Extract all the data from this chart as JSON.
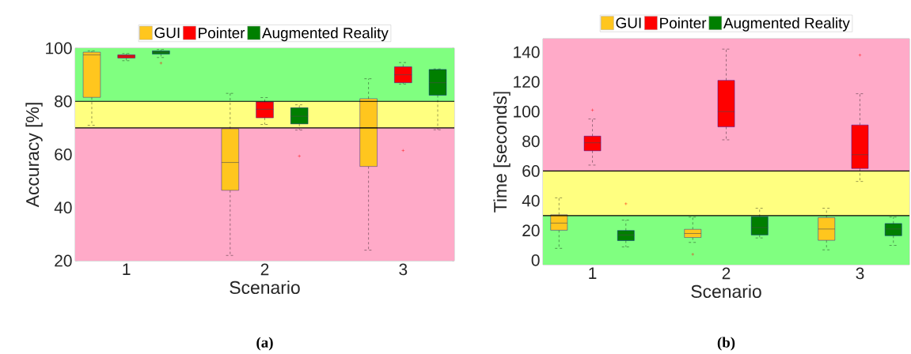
{
  "chart_data": [
    {
      "type": "box",
      "xlabel": "Scenario",
      "ylabel": "Accuracy [%]",
      "annotations": [
        "(a)"
      ],
      "categories": [
        "1",
        "2",
        "3"
      ],
      "ylim": [
        20,
        100
      ],
      "yticks": [
        20,
        40,
        60,
        80,
        100
      ],
      "grid": true,
      "legend": "top",
      "bands": [
        {
          "axis": "y",
          "from": 20,
          "to": 70,
          "color": "#ffaac8"
        },
        {
          "axis": "y",
          "from": 70,
          "to": 80,
          "color": "#ffff80"
        },
        {
          "axis": "y",
          "from": 80,
          "to": 100,
          "color": "#80ff80"
        }
      ],
      "ref_lines": [
        {
          "axis": "y",
          "value": 70,
          "color": "#000000"
        },
        {
          "axis": "y",
          "value": 80,
          "color": "#000000"
        }
      ],
      "series": [
        {
          "name": "GUI",
          "color": "#ffc61e",
          "boxes": [
            {
              "low": 71,
              "q1": 81.5,
              "median": 97.5,
              "q3": 98.5,
              "high": 99
            },
            {
              "low": 22,
              "q1": 46.5,
              "median": 57,
              "q3": 69.7,
              "high": 83
            },
            {
              "low": 24,
              "q1": 55.5,
              "median": 70,
              "q3": 81,
              "high": 88.5
            }
          ]
        },
        {
          "name": "Pointer",
          "color": "#ff0000",
          "boxes": [
            {
              "low": 95.3,
              "q1": 96.3,
              "median": 97,
              "q3": 97.5,
              "high": 98
            },
            {
              "low": 71.3,
              "q1": 73.8,
              "median": 77,
              "q3": 79.8,
              "high": 81.4
            },
            {
              "low": 86.5,
              "q1": 87,
              "median": 90,
              "q3": 93,
              "high": 94.6,
              "outliers": [
                61.5
              ]
            }
          ]
        },
        {
          "name": "Augmented Reality",
          "color": "#007f00",
          "boxes": [
            {
              "low": 96.5,
              "q1": 97.8,
              "median": 98.5,
              "q3": 99,
              "high": 99.5,
              "outliers": [
                94.4
              ]
            },
            {
              "low": 69.2,
              "q1": 71.5,
              "median": 74.4,
              "q3": 77.6,
              "high": 78.7,
              "outliers": [
                59.4
              ]
            },
            {
              "low": 69.3,
              "q1": 82.3,
              "median": 87,
              "q3": 92,
              "high": 92.2
            }
          ]
        }
      ]
    },
    {
      "type": "box",
      "xlabel": "Scenario",
      "ylabel": "Time [seconds]",
      "annotations": [
        "(b)"
      ],
      "categories": [
        "1",
        "2",
        "3"
      ],
      "ylim": [
        -3,
        149
      ],
      "yticks": [
        0,
        20,
        40,
        60,
        80,
        100,
        120,
        140
      ],
      "grid": true,
      "legend": "top",
      "bands": [
        {
          "axis": "y",
          "from": -3,
          "to": 30,
          "color": "#80ff80"
        },
        {
          "axis": "y",
          "from": 30,
          "to": 60,
          "color": "#ffff80"
        },
        {
          "axis": "y",
          "from": 60,
          "to": 149,
          "color": "#ffaac8"
        }
      ],
      "ref_lines": [
        {
          "axis": "y",
          "value": 30,
          "color": "#000000"
        },
        {
          "axis": "y",
          "value": 60,
          "color": "#000000"
        }
      ],
      "series": [
        {
          "name": "GUI",
          "color": "#ffc61e",
          "boxes": [
            {
              "low": 8,
              "q1": 20.2,
              "median": 25,
              "q3": 30.6,
              "high": 42
            },
            {
              "low": 12,
              "q1": 15.3,
              "median": 18,
              "q3": 20.8,
              "high": 29,
              "outliers": [
                4
              ]
            },
            {
              "low": 7,
              "q1": 13.4,
              "median": 21,
              "q3": 28.7,
              "high": 35
            }
          ]
        },
        {
          "name": "Pointer",
          "color": "#ff0000",
          "boxes": [
            {
              "low": 64,
              "q1": 73.6,
              "median": 79,
              "q3": 83.5,
              "high": 95,
              "outliers": [
                101
              ]
            },
            {
              "low": 81,
              "q1": 89.7,
              "median": 100,
              "q3": 121,
              "high": 142
            },
            {
              "low": 53,
              "q1": 61.7,
              "median": 71,
              "q3": 91,
              "high": 112,
              "outliers": [
                138
              ]
            }
          ]
        },
        {
          "name": "Augmented Reality",
          "color": "#007f00",
          "boxes": [
            {
              "low": 9,
              "q1": 13.2,
              "median": 17,
              "q3": 20,
              "high": 27,
              "outliers": [
                38
              ]
            },
            {
              "low": 15,
              "q1": 17,
              "median": 22,
              "q3": 29.3,
              "high": 35
            },
            {
              "low": 10,
              "q1": 16.5,
              "median": 21,
              "q3": 24.7,
              "high": 29
            }
          ]
        }
      ]
    }
  ]
}
